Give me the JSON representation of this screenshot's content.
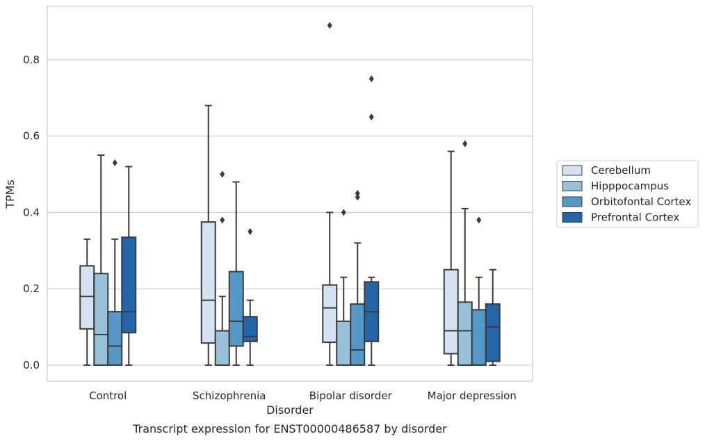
{
  "chart_data": {
    "type": "box",
    "title": "Transcript expression for ENST00000486587 by disorder",
    "xlabel": "Disorder",
    "ylabel": "TPMs",
    "ylim": [
      -0.042,
      0.94
    ],
    "yticks": [
      "0.0",
      "0.2",
      "0.4",
      "0.6",
      "0.8"
    ],
    "grid": "horizontal",
    "legend_position": "right",
    "categories": [
      "Control",
      "Schizophrenia",
      "Bipolar disorder",
      "Major depression"
    ],
    "series": [
      {
        "name": "Cerebellum",
        "color": "#d4e2f1",
        "boxes": [
          {
            "whislo": 0.0,
            "q1": 0.095,
            "med": 0.18,
            "q3": 0.26,
            "whishi": 0.33,
            "fliers": []
          },
          {
            "whislo": 0.0,
            "q1": 0.058,
            "med": 0.17,
            "q3": 0.375,
            "whishi": 0.68,
            "fliers": []
          },
          {
            "whislo": 0.0,
            "q1": 0.06,
            "med": 0.15,
            "q3": 0.21,
            "whishi": 0.4,
            "fliers": [
              0.89
            ]
          },
          {
            "whislo": 0.0,
            "q1": 0.03,
            "med": 0.09,
            "q3": 0.25,
            "whishi": 0.56,
            "fliers": []
          }
        ]
      },
      {
        "name": "Hipppocampus",
        "color": "#98c1da",
        "boxes": [
          {
            "whislo": 0.0,
            "q1": 0.0,
            "med": 0.08,
            "q3": 0.24,
            "whishi": 0.55,
            "fliers": []
          },
          {
            "whislo": 0.0,
            "q1": 0.0,
            "med": 0.0,
            "q3": 0.09,
            "whishi": 0.18,
            "fliers": [
              0.38,
              0.5
            ]
          },
          {
            "whislo": 0.0,
            "q1": 0.0,
            "med": 0.0,
            "q3": 0.115,
            "whishi": 0.23,
            "fliers": [
              0.4
            ]
          },
          {
            "whislo": 0.0,
            "q1": 0.0,
            "med": 0.09,
            "q3": 0.165,
            "whishi": 0.41,
            "fliers": [
              0.58
            ]
          }
        ]
      },
      {
        "name": "Orbitofontal Cortex",
        "color": "#5597c6",
        "boxes": [
          {
            "whislo": 0.0,
            "q1": 0.0,
            "med": 0.05,
            "q3": 0.14,
            "whishi": 0.33,
            "fliers": [
              0.53
            ]
          },
          {
            "whislo": 0.0,
            "q1": 0.05,
            "med": 0.115,
            "q3": 0.245,
            "whishi": 0.48,
            "fliers": []
          },
          {
            "whislo": 0.0,
            "q1": 0.0,
            "med": 0.04,
            "q3": 0.16,
            "whishi": 0.32,
            "fliers": [
              0.44,
              0.45
            ]
          },
          {
            "whislo": 0.0,
            "q1": 0.0,
            "med": 0.0,
            "q3": 0.145,
            "whishi": 0.23,
            "fliers": [
              0.38
            ]
          }
        ]
      },
      {
        "name": "Prefrontal Cortex",
        "color": "#2464a8",
        "boxes": [
          {
            "whislo": 0.0,
            "q1": 0.085,
            "med": 0.14,
            "q3": 0.335,
            "whishi": 0.52,
            "fliers": []
          },
          {
            "whislo": 0.0,
            "q1": 0.062,
            "med": 0.075,
            "q3": 0.127,
            "whishi": 0.17,
            "fliers": [
              0.35
            ]
          },
          {
            "whislo": 0.0,
            "q1": 0.062,
            "med": 0.14,
            "q3": 0.218,
            "whishi": 0.23,
            "fliers": [
              0.65,
              0.75
            ]
          },
          {
            "whislo": 0.0,
            "q1": 0.01,
            "med": 0.1,
            "q3": 0.16,
            "whishi": 0.25,
            "fliers": []
          }
        ]
      }
    ]
  }
}
